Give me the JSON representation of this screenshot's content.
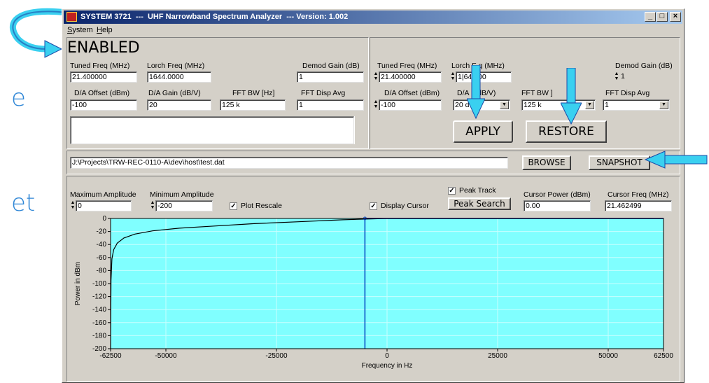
{
  "slide": {
    "frag1": "e",
    "frag2": "et"
  },
  "window": {
    "title": "SYSTEM 3721  ---  UHF Narrowband Spectrum Analyzer  --- Version: 1.002",
    "controls": {
      "minimize": "_",
      "maximize": "□",
      "close": "×"
    }
  },
  "menu": {
    "system": "System",
    "help": "Help"
  },
  "status": {
    "enabled": "ENABLED"
  },
  "left_settings": {
    "tuned_freq_label": "Tuned Freq (MHz)",
    "tuned_freq": "21.400000",
    "lorch_freq_label": "Lorch Freq (MHz)",
    "lorch_freq": "1644.0000",
    "demod_gain_label": "Demod Gain (dB)",
    "demod_gain": "1",
    "da_offset_label": "D/A Offset (dBm)",
    "da_offset": "-100",
    "da_gain_label": "D/A Gain (dB/V)",
    "da_gain": "20",
    "fft_bw_label": "FFT BW [Hz]",
    "fft_bw": "125 k",
    "fft_avg_label": "FFT Disp Avg",
    "fft_avg": "1"
  },
  "right_settings": {
    "tuned_freq_label": "Tuned Freq (MHz)",
    "tuned_freq": "21.400000",
    "lorch_freq_label": "Lorch F  q (MHz)",
    "lorch_freq": "1|64  000",
    "demod_gain_label": "Demod Gain (dB)",
    "demod_gain": "1",
    "da_offset_label": "D/A Offset (dBm)",
    "da_offset": "-100",
    "da_gain_label": "D/A I    (dB/V)",
    "da_gain": "20 d",
    "fft_bw_label": "FFT BW     ]",
    "fft_bw": "125 k",
    "fft_avg_label": "FFT Disp Avg",
    "fft_avg": "1"
  },
  "buttons": {
    "apply": "APPLY",
    "restore": "RESTORE",
    "browse": "BROWSE",
    "snapshot": "SNAPSHOT",
    "peak_search": "Peak Search"
  },
  "file_path": "J:\\Projects\\TRW-REC-0110-A\\dev\\host\\test.dat",
  "plot_controls": {
    "max_amp_label": "Maximum Amplitude",
    "max_amp": "0",
    "min_amp_label": "Minimum Amplitude",
    "min_amp": "-200",
    "plot_rescale": "Plot Rescale",
    "plot_rescale_checked": true,
    "display_cursor": "Display Cursor",
    "display_cursor_checked": true,
    "peak_track": "Peak Track",
    "peak_track_checked": true,
    "cursor_power_label": "Cursor Power (dBm)",
    "cursor_power": "0.00",
    "cursor_freq_label": "Cursor Freq (MHz)",
    "cursor_freq": "21.462499"
  },
  "chart_data": {
    "type": "line",
    "xlabel": "Frequency in Hz",
    "ylabel": "Power in dBm",
    "xlim": [
      -62500,
      62500
    ],
    "ylim": [
      -200,
      0
    ],
    "x_ticks": [
      -62500,
      -50000,
      -25000,
      0,
      25000,
      50000,
      62500
    ],
    "y_ticks": [
      0,
      -20,
      -40,
      -60,
      -80,
      -100,
      -120,
      -140,
      -160,
      -180,
      -200
    ],
    "cursor_x": -5000,
    "series": [
      {
        "x": [
          -62500,
          -62400,
          -62200,
          -61800,
          -61000,
          -59500,
          -57000,
          -53000,
          -47000,
          -40000,
          -30000,
          -20000,
          -10000,
          -5000,
          0,
          62500
        ],
        "y": [
          -200,
          -95,
          -62,
          -48,
          -38,
          -30,
          -24,
          -19,
          -15,
          -12,
          -8,
          -5,
          -2,
          -1,
          0,
          0
        ]
      }
    ],
    "colors": {
      "background": "#80ffff",
      "trace": "#000000",
      "cursor": "#0040c0",
      "flat": "#0000a0"
    }
  }
}
